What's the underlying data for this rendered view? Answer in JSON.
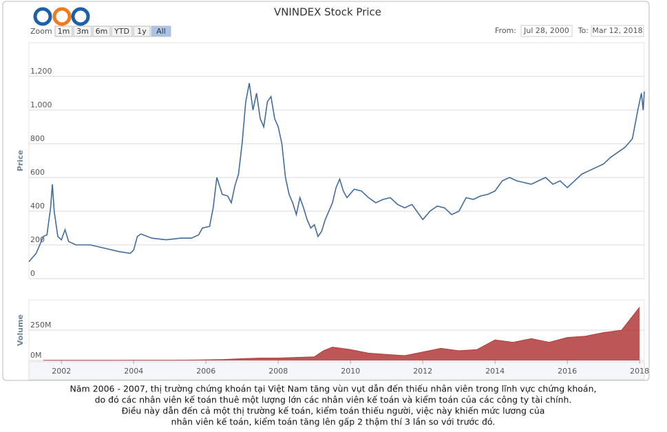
{
  "range_selector": {
    "zoom_label": "Zoom",
    "buttons": [
      "1m",
      "3m",
      "6m",
      "YTD",
      "1y",
      "All"
    ],
    "active": 5,
    "from_label": "From:",
    "from": "Jul 28, 2000",
    "to_label": "To:",
    "to": "Mar 12, 2018"
  },
  "chart_data": [
    {
      "type": "line",
      "title": "VNINDEX Stock Price",
      "y_label": "Price",
      "color": "#3f6b9c",
      "xlim": [
        2001.1,
        2018.13
      ],
      "ylim": [
        0,
        1400
      ],
      "yticks": [
        0,
        200,
        400,
        600,
        800,
        {
          "value": 1000,
          "label": "1,000"
        },
        {
          "value": 1200,
          "label": "1,200"
        }
      ],
      "grid": true,
      "x": [
        2001.1,
        2001.3,
        2001.5,
        2001.6,
        2001.7,
        2001.75,
        2001.8,
        2001.9,
        2002.0,
        2002.1,
        2002.2,
        2002.4,
        2002.8,
        2003.2,
        2003.6,
        2003.9,
        2004.0,
        2004.1,
        2004.2,
        2004.5,
        2004.9,
        2005.3,
        2005.6,
        2005.8,
        2005.9,
        2006.1,
        2006.2,
        2006.3,
        2006.45,
        2006.6,
        2006.7,
        2006.8,
        2006.9,
        2007.0,
        2007.1,
        2007.2,
        2007.3,
        2007.4,
        2007.5,
        2007.6,
        2007.7,
        2007.8,
        2007.9,
        2008.0,
        2008.1,
        2008.2,
        2008.3,
        2008.4,
        2008.5,
        2008.6,
        2008.7,
        2008.8,
        2008.9,
        2009.0,
        2009.1,
        2009.2,
        2009.3,
        2009.5,
        2009.6,
        2009.7,
        2009.8,
        2009.9,
        2010.1,
        2010.3,
        2010.5,
        2010.7,
        2010.9,
        2011.1,
        2011.3,
        2011.5,
        2011.7,
        2011.9,
        2012.0,
        2012.2,
        2012.4,
        2012.6,
        2012.8,
        2013.0,
        2013.2,
        2013.4,
        2013.6,
        2013.8,
        2014.0,
        2014.2,
        2014.4,
        2014.6,
        2014.8,
        2015.0,
        2015.2,
        2015.4,
        2015.6,
        2015.8,
        2016.0,
        2016.2,
        2016.4,
        2016.6,
        2016.8,
        2017.0,
        2017.2,
        2017.4,
        2017.6,
        2017.8,
        2017.95,
        2018.05,
        2018.1,
        2018.13
      ],
      "values": [
        100,
        150,
        250,
        260,
        420,
        560,
        400,
        250,
        230,
        290,
        220,
        200,
        200,
        180,
        160,
        150,
        170,
        250,
        265,
        240,
        230,
        240,
        240,
        260,
        300,
        310,
        420,
        600,
        500,
        490,
        450,
        550,
        620,
        800,
        1050,
        1160,
        1000,
        1100,
        950,
        900,
        1050,
        1080,
        950,
        900,
        800,
        600,
        500,
        450,
        380,
        480,
        420,
        350,
        300,
        320,
        250,
        280,
        350,
        450,
        540,
        590,
        520,
        480,
        530,
        520,
        480,
        450,
        470,
        480,
        440,
        420,
        440,
        380,
        350,
        400,
        430,
        420,
        380,
        400,
        480,
        470,
        490,
        500,
        520,
        580,
        600,
        580,
        570,
        560,
        580,
        600,
        560,
        580,
        540,
        580,
        620,
        640,
        660,
        680,
        720,
        750,
        780,
        830,
        1000,
        1100,
        1000,
        1110
      ]
    },
    {
      "type": "area",
      "y_label": "Volume",
      "color": "#b23a3a",
      "xlim": [
        2001.1,
        2018.13
      ],
      "ylim": [
        0,
        500
      ],
      "yticks": [
        {
          "value": 0,
          "label": "0M"
        },
        {
          "value": 250,
          "label": "250M"
        }
      ],
      "grid": true,
      "xticks": [
        2002,
        2004,
        2006,
        2008,
        2010,
        2012,
        2014,
        2016,
        2018
      ],
      "x": [
        2001.5,
        2002,
        2002.5,
        2003,
        2003.5,
        2004,
        2004.5,
        2005,
        2005.5,
        2006,
        2006.5,
        2007,
        2007.5,
        2008,
        2008.5,
        2009,
        2009.25,
        2009.5,
        2010,
        2010.5,
        2011,
        2011.5,
        2012,
        2012.5,
        2013,
        2013.5,
        2014,
        2014.5,
        2015,
        2015.5,
        2016,
        2016.5,
        2017,
        2017.5,
        2018
      ],
      "values": [
        1,
        1,
        1,
        1,
        1,
        2,
        2,
        2,
        3,
        5,
        8,
        15,
        20,
        20,
        25,
        30,
        80,
        110,
        90,
        60,
        50,
        40,
        70,
        100,
        80,
        90,
        170,
        150,
        180,
        150,
        190,
        200,
        230,
        250,
        440
      ]
    }
  ],
  "caption": [
    "Năm 2006 - 2007, thị trường chứng khoán tại Việt Nam tăng vùn vụt dẫn đến thiếu nhân viên trong lĩnh vực chứng khoán,",
    "do đó các nhân viên kế toán thuê một lượng lớn các nhân viên kế toán và kiểm toán của các công ty tài chính.",
    "Điều này dẫn đến cả một thị trường kế toán, kiểm toán thiếu người, việc này khiến mức lương của",
    "nhân viên kế toán, kiểm toán tăng lên gấp 2 thậm thí 3 lần so với trước đó."
  ]
}
